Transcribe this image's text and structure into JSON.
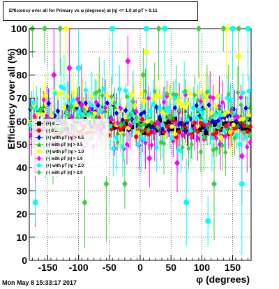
{
  "chart_data": {
    "type": "scatter",
    "title": "Efficiency over all for Primary vs φ (degrees) at |η| <= 1.0 at pT > 0.11",
    "xlabel": "φ (degrees)",
    "ylabel": "Efficiency over all (%)",
    "xlim": [
      -180,
      180
    ],
    "ylim": [
      0,
      100
    ],
    "xticks": [
      -150,
      -100,
      -50,
      0,
      50,
      100,
      150
    ],
    "yticks": [
      0,
      10,
      20,
      30,
      40,
      50,
      60,
      70,
      80,
      90,
      100
    ],
    "grid": true,
    "legend_position": "left-center",
    "series": [
      {
        "name": "(+) 0 ...",
        "color": "#000000",
        "marker": "square",
        "spread": 3,
        "base": 58,
        "outliers": []
      },
      {
        "name": "(-) 0 ...",
        "color": "#ff0000",
        "marker": "circle",
        "spread": 4,
        "base": 57,
        "outliers": []
      },
      {
        "name": "(+) with pT |η| > 0.5",
        "color": "#0000ff",
        "marker": "diamond",
        "spread": 6,
        "base": 62,
        "outliers": []
      },
      {
        "name": "(-) with pT |η| > 0.5",
        "color": "#00c000",
        "marker": "triangle",
        "spread": 6,
        "base": 61,
        "outliers": []
      },
      {
        "name": "(+) with pT |η| > 1.0",
        "color": "#ffff00",
        "marker": "circle",
        "spread": 10,
        "base": 63,
        "outliers": [
          [
            -120,
            100
          ],
          [
            10,
            90
          ],
          [
            140,
            100
          ],
          [
            160,
            88
          ]
        ]
      },
      {
        "name": "(-) with pT |η| > 1.0",
        "color": "#ff00ff",
        "marker": "diamond",
        "spread": 12,
        "base": 60,
        "outliers": [
          [
            -170,
            39
          ],
          [
            -140,
            80
          ],
          [
            -115,
            83
          ],
          [
            -95,
            67
          ],
          [
            -70,
            57
          ],
          [
            -20,
            86
          ],
          [
            15,
            44
          ],
          [
            60,
            42
          ],
          [
            130,
            50
          ],
          [
            165,
            45
          ]
        ]
      },
      {
        "name": "(+) with pT |η| > 2.0",
        "color": "#00ffff",
        "marker": "circle",
        "spread": 14,
        "base": 61,
        "outliers": [
          [
            -170,
            25
          ],
          [
            -100,
            83
          ],
          [
            -45,
            100
          ],
          [
            10,
            100
          ],
          [
            40,
            100
          ],
          [
            75,
            25
          ],
          [
            110,
            17
          ],
          [
            150,
            100
          ],
          [
            165,
            33
          ],
          [
            175,
            100
          ]
        ]
      },
      {
        "name": "(-) with pT |η| > 2.0",
        "color": "#44cc44",
        "marker": "diamond",
        "spread": 14,
        "base": 60,
        "outliers": [
          [
            -175,
            100
          ],
          [
            -155,
            100
          ],
          [
            -130,
            100
          ],
          [
            -90,
            25
          ],
          [
            -55,
            33
          ],
          [
            -25,
            33
          ],
          [
            5,
            80
          ],
          [
            30,
            100
          ],
          [
            95,
            100
          ],
          [
            120,
            33
          ],
          [
            135,
            100
          ],
          [
            160,
            100
          ]
        ]
      }
    ]
  },
  "legend": {
    "entries": [
      "(+) 0 ...",
      "(-) 0 ...",
      "(+) with pT |η| > 0.5",
      "(-) with pT |η| > 0.5",
      "(+) with pT |η| > 1.0",
      "(-) with pT |η| > 1.0",
      "(+) with pT |η| > 2.0",
      "(-) with pT |η| > 2.0"
    ]
  },
  "footer": "Mon May  8 15:33:17 2017"
}
